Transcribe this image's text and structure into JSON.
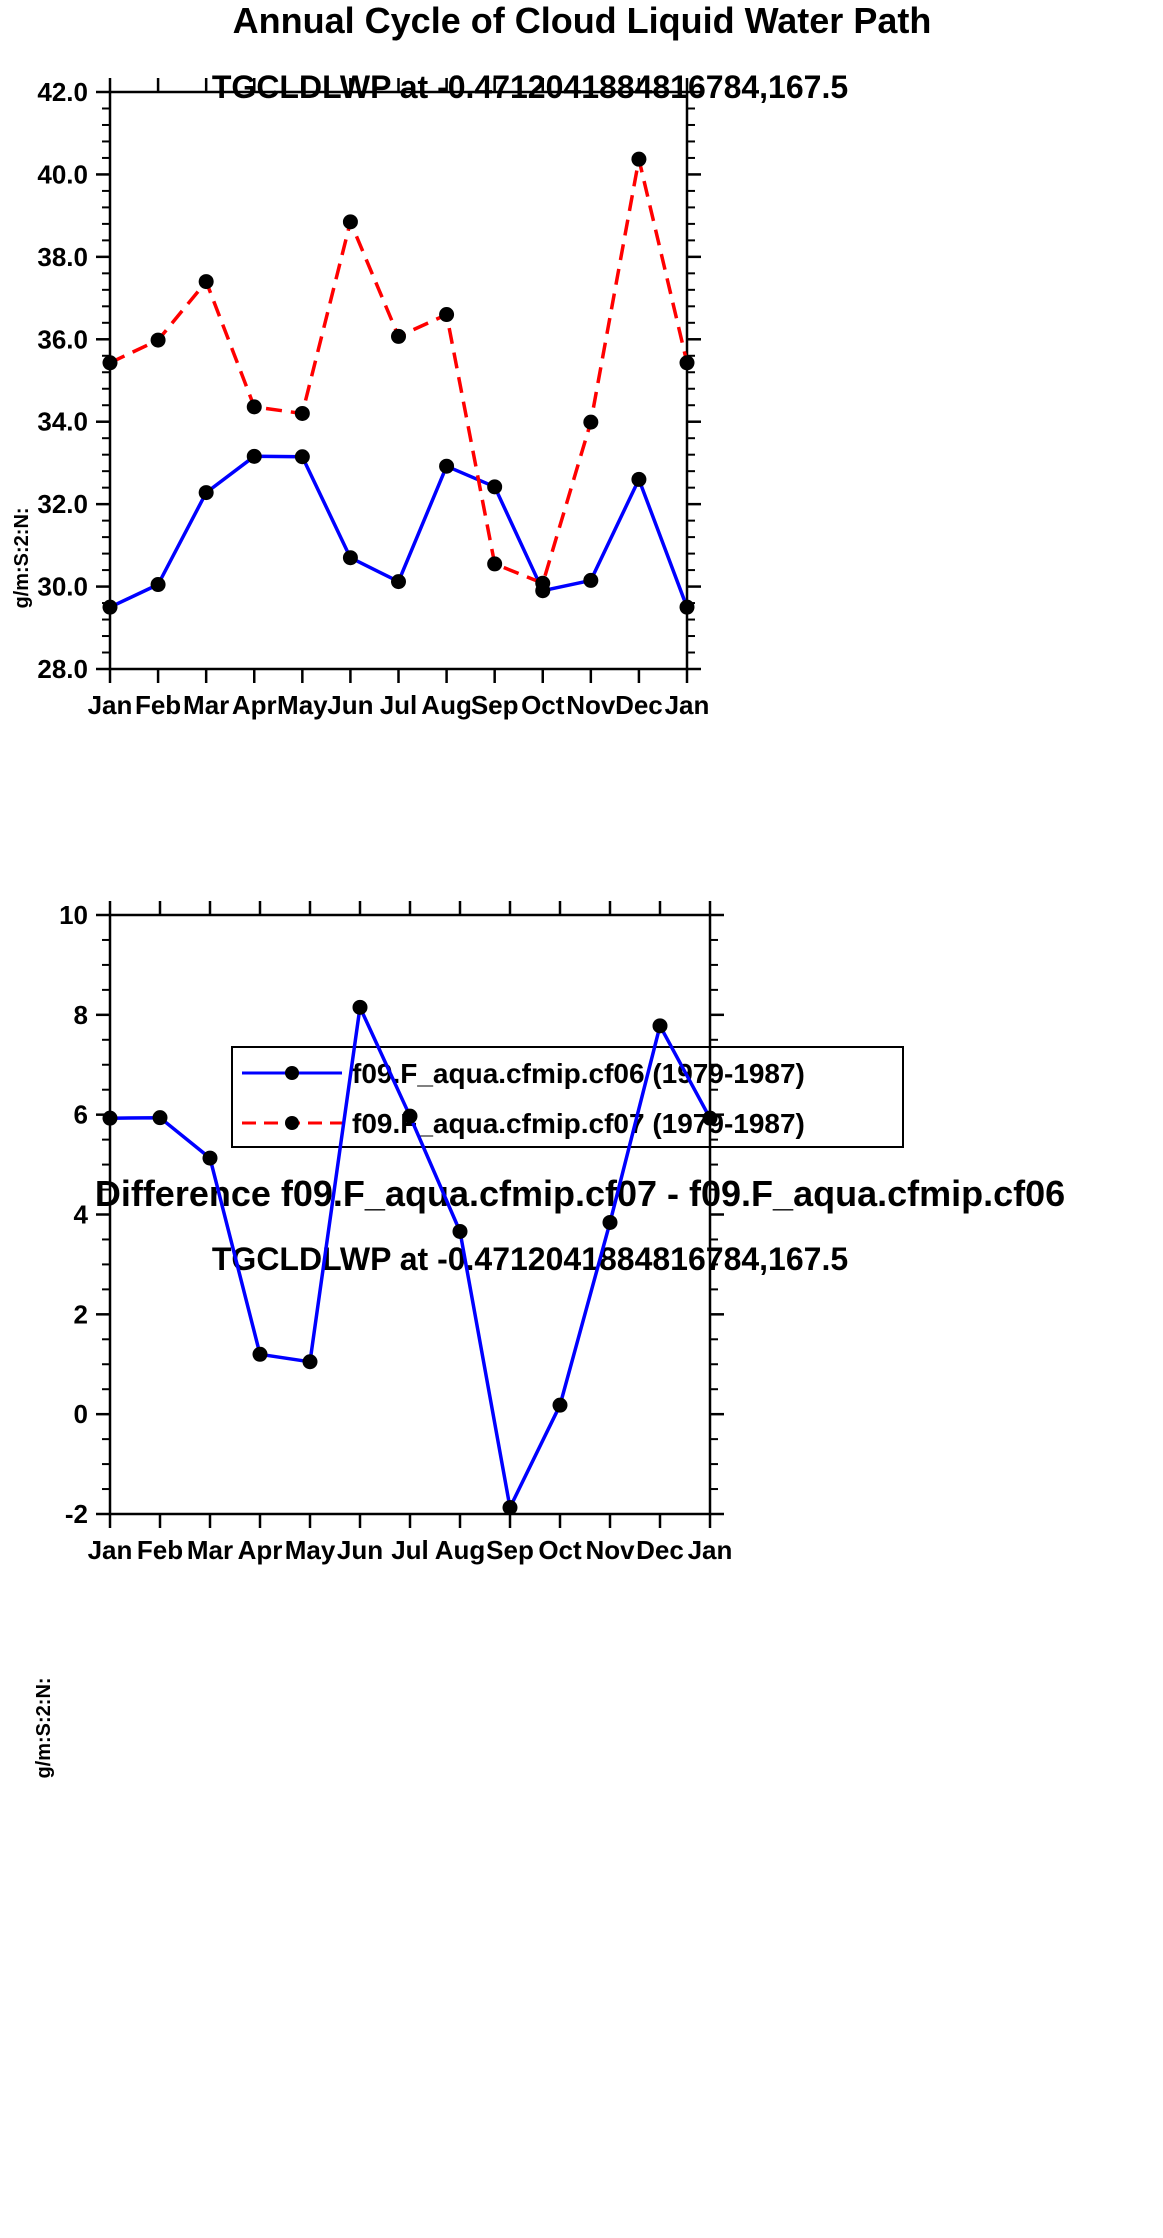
{
  "chart_data": [
    {
      "type": "line",
      "title": "Annual Cycle of Cloud Liquid Water Path",
      "subtitle": "TGCLDLWP at -0.4712041884816784,167.5",
      "xlabel": "",
      "ylabel": "g/m:S:2:N:",
      "categories": [
        "Jan",
        "Feb",
        "Mar",
        "Apr",
        "May",
        "Jun",
        "Jul",
        "Aug",
        "Sep",
        "Oct",
        "Nov",
        "Dec",
        "Jan"
      ],
      "ylim": [
        28.0,
        42.0
      ],
      "yticks": [
        "28.0",
        "30.0",
        "32.0",
        "34.0",
        "36.0",
        "38.0",
        "40.0",
        "42.0"
      ],
      "series": [
        {
          "name": "f09.F_aqua.cfmip.cf06 (1979-1987)",
          "color": "#0000ff",
          "dash": "solid",
          "values": [
            29.5,
            30.05,
            32.28,
            33.16,
            33.15,
            30.7,
            30.12,
            32.92,
            32.42,
            29.9,
            30.15,
            32.6,
            29.5
          ]
        },
        {
          "name": "f09.F_aqua.cfmip.cf07 (1979-1987)",
          "color": "#ff0000",
          "dash": "dashed",
          "values": [
            35.43,
            35.98,
            37.4,
            34.36,
            34.2,
            38.85,
            36.07,
            36.6,
            30.55,
            30.08,
            33.99,
            40.37,
            35.43
          ]
        }
      ],
      "legend": "bottom"
    },
    {
      "type": "line",
      "title": "Difference f09.F_aqua.cfmip.cf07 - f09.F_aqua.cfmip.cf06",
      "subtitle": "TGCLDLWP at -0.4712041884816784,167.5",
      "xlabel": "",
      "ylabel": "g/m:S:2:N:",
      "categories": [
        "Jan",
        "Feb",
        "Mar",
        "Apr",
        "May",
        "Jun",
        "Jul",
        "Aug",
        "Sep",
        "Oct",
        "Nov",
        "Dec",
        "Jan"
      ],
      "ylim": [
        -2,
        10
      ],
      "yticks": [
        "-2",
        "0",
        "2",
        "4",
        "6",
        "8",
        "10"
      ],
      "series": [
        {
          "name": "difference",
          "color": "#0000ff",
          "dash": "solid",
          "values": [
            5.93,
            5.94,
            5.13,
            1.2,
            1.05,
            8.15,
            5.97,
            3.66,
            -1.87,
            0.18,
            3.84,
            7.78,
            5.93
          ]
        }
      ]
    }
  ]
}
